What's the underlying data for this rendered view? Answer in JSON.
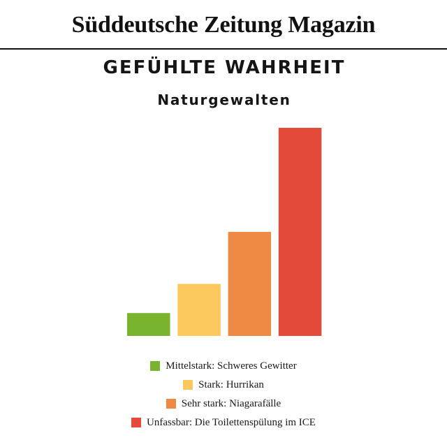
{
  "header": {
    "brand": "Süddeutsche Zeitung Magazin",
    "kicker": "GEFÜHLTE WAHRHEIT"
  },
  "chart_data": {
    "type": "bar",
    "title": "Naturgewalten",
    "categories": [
      "Mittelstark: Schweres Gewitter",
      "Stark: Hurrikan",
      "Sehr stark: Niagarafälle",
      "Unfassbar: Die Toilettenspülung im ICE"
    ],
    "values": [
      11,
      25,
      50,
      100
    ],
    "colors": [
      "#79b42e",
      "#fcc85e",
      "#ee8a43",
      "#e64a3a"
    ],
    "ylim": [
      0,
      100
    ],
    "axes_visible": false,
    "grid": false,
    "legend_position": "bottom"
  }
}
